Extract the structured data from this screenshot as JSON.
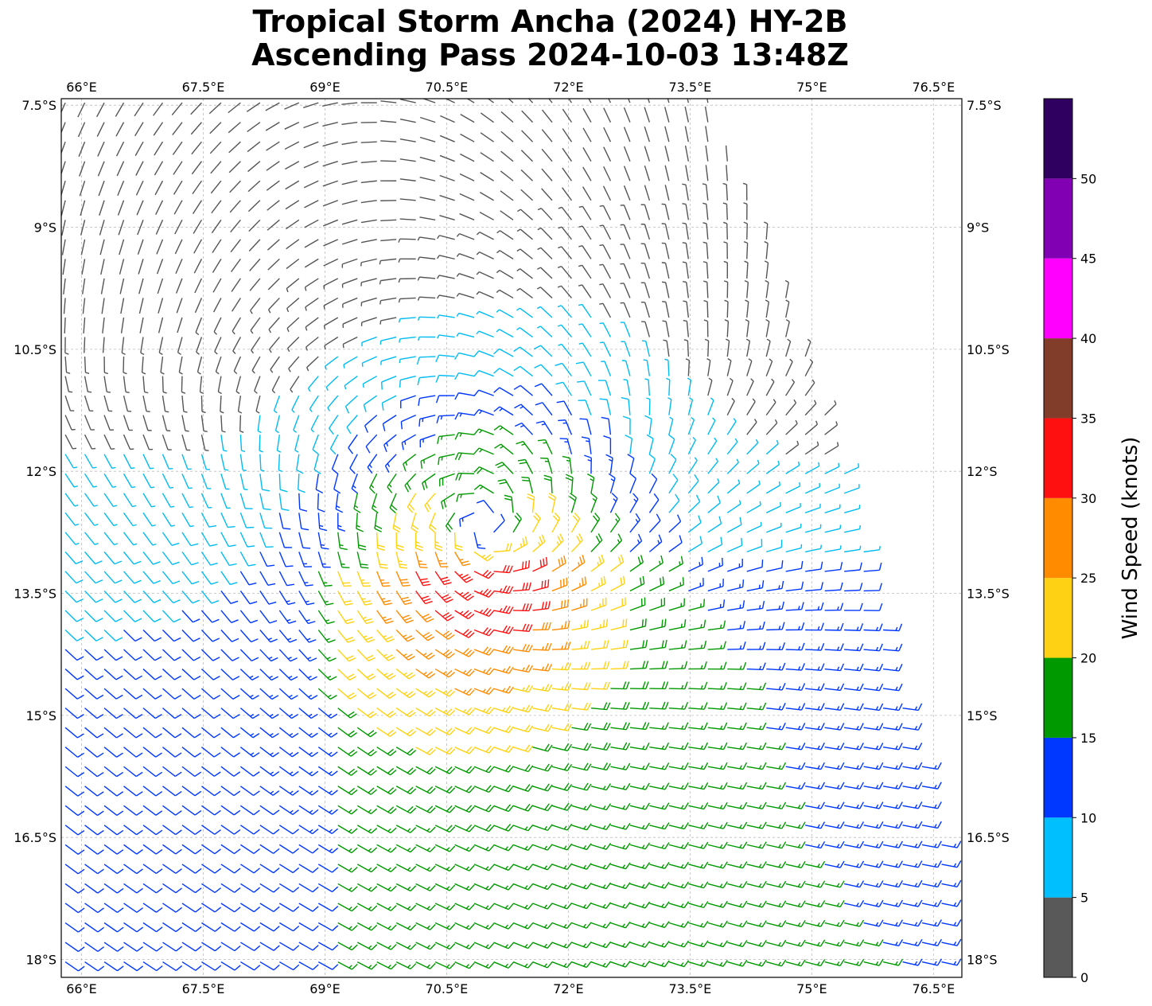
{
  "title": {
    "line1": "Tropical Storm Ancha (2024) HY-2B",
    "line2": "Ascending Pass 2024-10-03 13:48Z"
  },
  "map": {
    "lon_range": [
      65.75,
      76.85
    ],
    "lat_range": [
      -18.22,
      -7.42
    ],
    "lon_ticks": [
      66,
      67.5,
      69,
      70.5,
      72,
      73.5,
      75,
      76.5
    ],
    "lon_tick_labels": [
      "66°E",
      "67.5°E",
      "69°E",
      "70.5°E",
      "72°E",
      "73.5°E",
      "75°E",
      "76.5°E"
    ],
    "lat_ticks": [
      -7.5,
      -9,
      -10.5,
      -12,
      -13.5,
      -15,
      -16.5,
      -18
    ],
    "lat_tick_labels": [
      "7.5°S",
      "9°S",
      "10.5°S",
      "12°S",
      "13.5°S",
      "15°S",
      "16.5°S",
      "18°S"
    ],
    "grid": true,
    "grid_style": "dashed light gray",
    "storm_center": {
      "lon": 70.95,
      "lat": -12.75
    },
    "swath_right_edge": [
      [
        73.7,
        -7.42
      ],
      [
        74.3,
        -8.7
      ],
      [
        74.95,
        -10.6
      ],
      [
        75.6,
        -12.6
      ],
      [
        76.1,
        -14.6
      ],
      [
        76.6,
        -16.4
      ],
      [
        76.85,
        -18.22
      ]
    ],
    "barb_spacing_deg": 0.24,
    "barb_colors_by_speed_knots": [
      {
        "min": 0,
        "max": 5,
        "color": "#555555"
      },
      {
        "min": 5,
        "max": 10,
        "color": "#00bcf2"
      },
      {
        "min": 10,
        "max": 15,
        "color": "#0037ff"
      },
      {
        "min": 15,
        "max": 20,
        "color": "#009900"
      },
      {
        "min": 20,
        "max": 25,
        "color": "#ffd211"
      },
      {
        "min": 25,
        "max": 30,
        "color": "#ff8c00"
      },
      {
        "min": 30,
        "max": 35,
        "color": "#ff1111"
      }
    ]
  },
  "colorbar": {
    "label": "Wind Speed (knots)",
    "ticks": [
      "0",
      "5",
      "10",
      "15",
      "20",
      "25",
      "30",
      "35",
      "40",
      "45",
      "50"
    ],
    "bins": [
      {
        "from": 0,
        "to": 5,
        "color": "#595959"
      },
      {
        "from": 5,
        "to": 10,
        "color": "#00bfff"
      },
      {
        "from": 10,
        "to": 15,
        "color": "#0038ff"
      },
      {
        "from": 15,
        "to": 20,
        "color": "#009a00"
      },
      {
        "from": 20,
        "to": 25,
        "color": "#ffd114"
      },
      {
        "from": 25,
        "to": 30,
        "color": "#ff8c00"
      },
      {
        "from": 30,
        "to": 35,
        "color": "#ff1010"
      },
      {
        "from": 35,
        "to": 40,
        "color": "#813c2a"
      },
      {
        "from": 40,
        "to": 45,
        "color": "#ff00ff"
      },
      {
        "from": 45,
        "to": 50,
        "color": "#8200b4"
      },
      {
        "from": 50,
        "to": 55,
        "color": "#2f0060"
      }
    ]
  }
}
